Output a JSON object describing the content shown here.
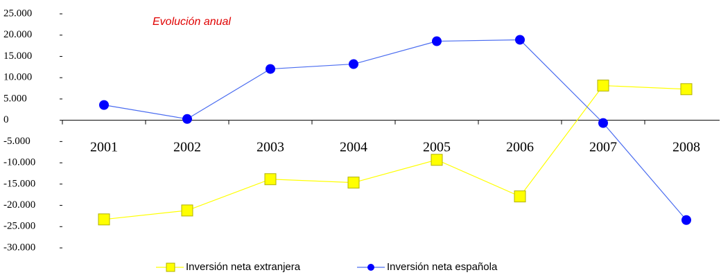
{
  "chart_data": {
    "type": "line",
    "annotation": "Evolución anual",
    "categories": [
      "2001",
      "2002",
      "2003",
      "2004",
      "2005",
      "2006",
      "2007",
      "2008"
    ],
    "series": [
      {
        "name": "Inversión neta extranjera",
        "color": "#ffff00",
        "values": [
          -23300,
          -21200,
          -13850,
          -14650,
          -9300,
          -17900,
          8150,
          7300
        ]
      },
      {
        "name": "Inversión neta española",
        "color": "#0000ff",
        "values": [
          3580,
          300,
          12050,
          13200,
          18570,
          18900,
          -650,
          -23450
        ]
      }
    ],
    "ylim": [
      -30000,
      25000
    ],
    "yticks": [
      {
        "value": -30000,
        "label": "-30.000"
      },
      {
        "value": -25000,
        "label": "-25.000"
      },
      {
        "value": -20000,
        "label": "-20.000"
      },
      {
        "value": -15000,
        "label": "-15.000"
      },
      {
        "value": -10000,
        "label": "-10.000"
      },
      {
        "value": -5000,
        "label": "-5.000"
      },
      0,
      {
        "value": 5000,
        "label": "5.000"
      },
      {
        "value": 10000,
        "label": "10.000"
      },
      {
        "value": 15000,
        "label": "15.000"
      },
      {
        "value": 20000,
        "label": "20.000"
      },
      {
        "value": 25000,
        "label": "25.000"
      }
    ],
    "legend": "bottom"
  }
}
